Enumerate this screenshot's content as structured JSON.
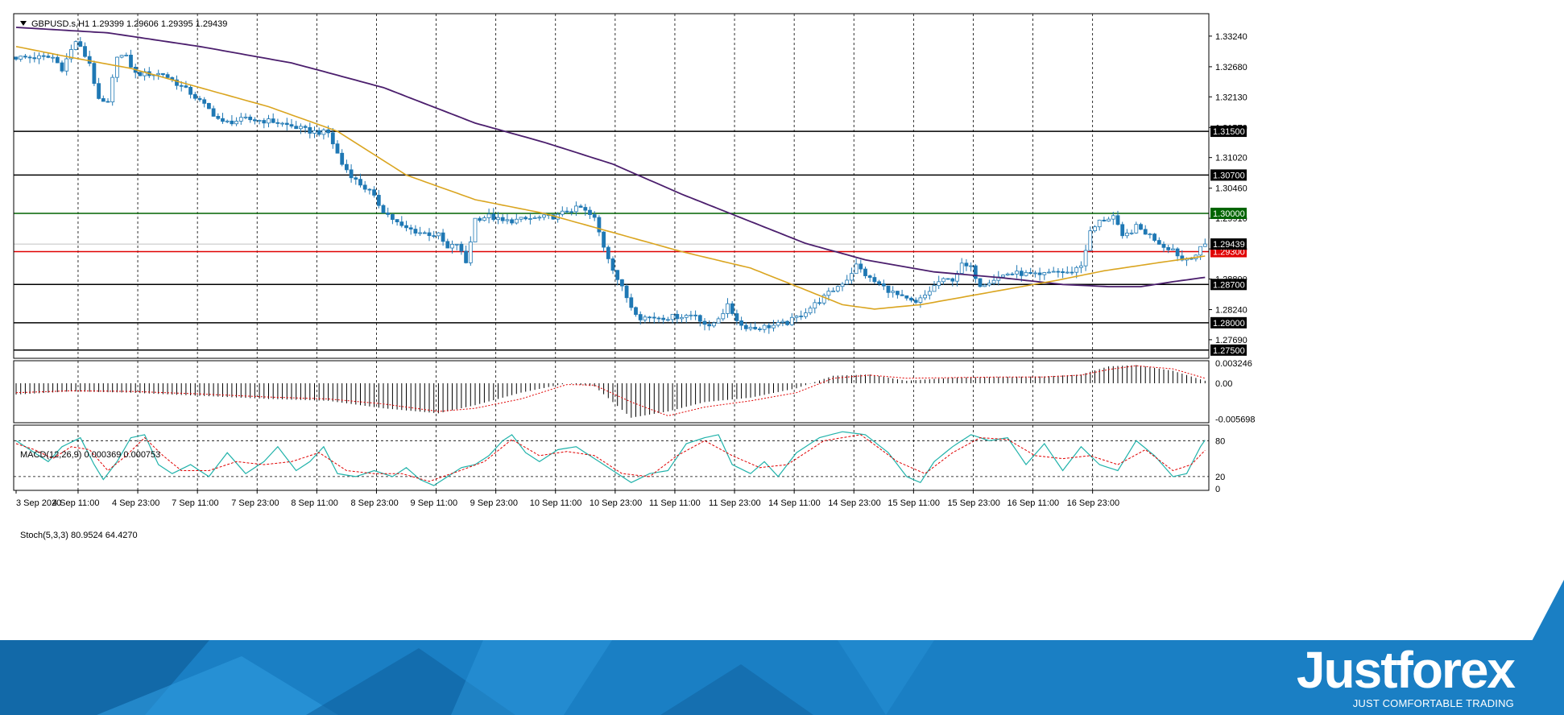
{
  "chart_data": {
    "type": "candlestick",
    "main": {
      "header": "GBPUSD.s,H1  1.29399 1.29606 1.29395 1.29439",
      "ylim": [
        1.2735,
        1.3365
      ],
      "price_ticks": [
        "1.33240",
        "1.32680",
        "1.32130",
        "1.31570",
        "1.31020",
        "1.30460",
        "1.29910",
        "1.29350",
        "1.28800",
        "1.28240",
        "1.27690"
      ],
      "x_labels": [
        "3 Sep 2020",
        "4 Sep 11:00",
        "4 Sep 23:00",
        "7 Sep 11:00",
        "7 Sep 23:00",
        "8 Sep 11:00",
        "8 Sep 23:00",
        "9 Sep 11:00",
        "9 Sep 23:00",
        "10 Sep 11:00",
        "10 Sep 23:00",
        "11 Sep 11:00",
        "11 Sep 23:00",
        "14 Sep 11:00",
        "14 Sep 23:00",
        "15 Sep 11:00",
        "15 Sep 23:00",
        "16 Sep 11:00",
        "16 Sep 23:00"
      ],
      "close_keypoints": [
        [
          0,
          1.3285
        ],
        [
          8,
          1.3285
        ],
        [
          10,
          1.3265
        ],
        [
          13,
          1.3315
        ],
        [
          16,
          1.3275
        ],
        [
          18,
          1.3205
        ],
        [
          20,
          1.32
        ],
        [
          22,
          1.329
        ],
        [
          24,
          1.3285
        ],
        [
          26,
          1.3255
        ],
        [
          32,
          1.3255
        ],
        [
          38,
          1.322
        ],
        [
          42,
          1.319
        ],
        [
          45,
          1.3165
        ],
        [
          50,
          1.3172
        ],
        [
          56,
          1.3168
        ],
        [
          61,
          1.3157
        ],
        [
          64,
          1.315
        ],
        [
          68,
          1.3147
        ],
        [
          71,
          1.309
        ],
        [
          74,
          1.306
        ],
        [
          77,
          1.304
        ],
        [
          80,
          1.3005
        ],
        [
          84,
          1.2975
        ],
        [
          88,
          1.2965
        ],
        [
          92,
          1.296
        ],
        [
          94,
          1.2935
        ],
        [
          96,
          1.2945
        ],
        [
          98,
          1.291
        ],
        [
          100,
          1.299
        ],
        [
          103,
          1.2995
        ],
        [
          106,
          1.2985
        ],
        [
          112,
          1.299
        ],
        [
          118,
          1.2995
        ],
        [
          120,
          1.3005
        ],
        [
          123,
          1.301
        ],
        [
          126,
          1.299
        ],
        [
          128,
          1.294
        ],
        [
          131,
          1.288
        ],
        [
          134,
          1.283
        ],
        [
          136,
          1.281
        ],
        [
          142,
          1.281
        ],
        [
          148,
          1.2815
        ],
        [
          151,
          1.279
        ],
        [
          155,
          1.283
        ],
        [
          158,
          1.2795
        ],
        [
          161,
          1.279
        ],
        [
          165,
          1.2795
        ],
        [
          168,
          1.28
        ],
        [
          171,
          1.2815
        ],
        [
          175,
          1.284
        ],
        [
          178,
          1.286
        ],
        [
          181,
          1.288
        ],
        [
          183,
          1.2905
        ],
        [
          186,
          1.288
        ],
        [
          189,
          1.2865
        ],
        [
          193,
          1.2845
        ],
        [
          196,
          1.2835
        ],
        [
          198,
          1.285
        ],
        [
          201,
          1.2875
        ],
        [
          204,
          1.288
        ],
        [
          206,
          1.2905
        ],
        [
          208,
          1.29
        ],
        [
          210,
          1.287
        ],
        [
          213,
          1.288
        ],
        [
          216,
          1.289
        ],
        [
          219,
          1.289
        ],
        [
          223,
          1.2885
        ],
        [
          226,
          1.2895
        ],
        [
          229,
          1.289
        ],
        [
          232,
          1.2905
        ],
        [
          234,
          1.2965
        ],
        [
          236,
          1.2985
        ],
        [
          239,
          1.2995
        ],
        [
          241,
          1.2955
        ],
        [
          244,
          1.2975
        ],
        [
          247,
          1.296
        ],
        [
          250,
          1.294
        ],
        [
          252,
          1.2935
        ],
        [
          254,
          1.2915
        ],
        [
          257,
          1.2925
        ],
        [
          259,
          1.2944
        ]
      ],
      "sma_fast_keypoints": [
        [
          0,
          1.3305
        ],
        [
          12,
          1.3285
        ],
        [
          25,
          1.3265
        ],
        [
          40,
          1.323
        ],
        [
          55,
          1.3195
        ],
        [
          70,
          1.315
        ],
        [
          85,
          1.307
        ],
        [
          100,
          1.3025
        ],
        [
          115,
          1.3
        ],
        [
          130,
          1.2965
        ],
        [
          145,
          1.293
        ],
        [
          160,
          1.29
        ],
        [
          172,
          1.286
        ],
        [
          180,
          1.2833
        ],
        [
          187,
          1.2825
        ],
        [
          197,
          1.2833
        ],
        [
          207,
          1.2848
        ],
        [
          217,
          1.2863
        ],
        [
          227,
          1.2878
        ],
        [
          237,
          1.2895
        ],
        [
          249,
          1.291
        ],
        [
          259,
          1.2922
        ]
      ],
      "sma_slow_keypoints": [
        [
          0,
          1.334
        ],
        [
          20,
          1.333
        ],
        [
          40,
          1.3305
        ],
        [
          60,
          1.3275
        ],
        [
          80,
          1.323
        ],
        [
          100,
          1.3165
        ],
        [
          115,
          1.313
        ],
        [
          130,
          1.309
        ],
        [
          145,
          1.3035
        ],
        [
          160,
          1.2985
        ],
        [
          172,
          1.2945
        ],
        [
          185,
          1.2915
        ],
        [
          200,
          1.2893
        ],
        [
          215,
          1.2882
        ],
        [
          228,
          1.287
        ],
        [
          238,
          1.2866
        ],
        [
          245,
          1.2866
        ],
        [
          252,
          1.2875
        ],
        [
          259,
          1.2883
        ]
      ],
      "levels": [
        {
          "price": 1.315,
          "label": "1.31500",
          "color": "#000000",
          "text_color": "#ffffff"
        },
        {
          "price": 1.307,
          "label": "1.30700",
          "color": "#000000",
          "text_color": "#ffffff"
        },
        {
          "price": 1.3,
          "label": "1.30000",
          "color": "#006400",
          "text_color": "#ffffff"
        },
        {
          "price": 1.293,
          "label": "1.29300",
          "color": "#e00000",
          "text_color": "#ffffff"
        },
        {
          "price": 1.287,
          "label": "1.28700",
          "color": "#000000",
          "text_color": "#ffffff"
        },
        {
          "price": 1.28,
          "label": "1.28000",
          "color": "#000000",
          "text_color": "#ffffff"
        },
        {
          "price": 1.275,
          "label": "1.27500",
          "color": "#000000",
          "text_color": "#ffffff"
        }
      ],
      "current_price": {
        "price": 1.29439,
        "label": "1.29439"
      }
    },
    "macd": {
      "header": "MACD(12,26,9) 0.000369 0.000753",
      "ticks": [
        "0.003246",
        "0.00",
        "-0.005698"
      ],
      "ylim": [
        -0.0063,
        0.0036
      ],
      "hist_keypoints": [
        [
          0,
          -0.0018
        ],
        [
          12,
          -0.0013
        ],
        [
          25,
          -0.0015
        ],
        [
          40,
          -0.002
        ],
        [
          55,
          -0.0025
        ],
        [
          68,
          -0.0028
        ],
        [
          80,
          -0.004
        ],
        [
          92,
          -0.0048
        ],
        [
          100,
          -0.0035
        ],
        [
          110,
          -0.0015
        ],
        [
          120,
          0.0
        ],
        [
          126,
          -0.0005
        ],
        [
          134,
          -0.0055
        ],
        [
          142,
          -0.0045
        ],
        [
          150,
          -0.003
        ],
        [
          160,
          -0.0023
        ],
        [
          170,
          -0.0008
        ],
        [
          178,
          0.0012
        ],
        [
          186,
          0.0014
        ],
        [
          194,
          0.0004
        ],
        [
          204,
          0.0009
        ],
        [
          214,
          0.001
        ],
        [
          224,
          0.0011
        ],
        [
          232,
          0.0014
        ],
        [
          238,
          0.0027
        ],
        [
          244,
          0.0029
        ],
        [
          252,
          0.002
        ],
        [
          259,
          0.0004
        ]
      ],
      "signal_keypoints": [
        [
          0,
          -0.0015
        ],
        [
          12,
          -0.0012
        ],
        [
          25,
          -0.0013
        ],
        [
          40,
          -0.0017
        ],
        [
          55,
          -0.0022
        ],
        [
          68,
          -0.0025
        ],
        [
          80,
          -0.0033
        ],
        [
          92,
          -0.0045
        ],
        [
          100,
          -0.004
        ],
        [
          110,
          -0.0025
        ],
        [
          120,
          -0.0002
        ],
        [
          126,
          -0.0003
        ],
        [
          134,
          -0.003
        ],
        [
          142,
          -0.0052
        ],
        [
          150,
          -0.0038
        ],
        [
          160,
          -0.0028
        ],
        [
          170,
          -0.0015
        ],
        [
          178,
          0.0008
        ],
        [
          186,
          0.0013
        ],
        [
          194,
          0.0008
        ],
        [
          204,
          0.0009
        ],
        [
          214,
          0.001
        ],
        [
          224,
          0.001
        ],
        [
          232,
          0.0013
        ],
        [
          238,
          0.0022
        ],
        [
          244,
          0.0028
        ],
        [
          252,
          0.0023
        ],
        [
          259,
          0.0008
        ]
      ]
    },
    "stoch": {
      "header": "Stoch(5,3,3) 80.9524 64.4270",
      "ticks": [
        "80",
        "20",
        "0"
      ],
      "ylim": [
        -3,
        106
      ],
      "main_keypoints": [
        [
          0,
          80
        ],
        [
          4,
          60
        ],
        [
          7,
          45
        ],
        [
          10,
          70
        ],
        [
          14,
          85
        ],
        [
          17,
          40
        ],
        [
          19,
          15
        ],
        [
          22,
          45
        ],
        [
          25,
          85
        ],
        [
          28,
          90
        ],
        [
          31,
          40
        ],
        [
          34,
          25
        ],
        [
          38,
          40
        ],
        [
          42,
          20
        ],
        [
          46,
          60
        ],
        [
          50,
          25
        ],
        [
          54,
          45
        ],
        [
          57,
          70
        ],
        [
          61,
          30
        ],
        [
          64,
          45
        ],
        [
          67,
          70
        ],
        [
          70,
          25
        ],
        [
          74,
          20
        ],
        [
          78,
          30
        ],
        [
          82,
          20
        ],
        [
          85,
          35
        ],
        [
          88,
          15
        ],
        [
          91,
          5
        ],
        [
          94,
          20
        ],
        [
          97,
          35
        ],
        [
          100,
          40
        ],
        [
          103,
          55
        ],
        [
          106,
          80
        ],
        [
          108,
          90
        ],
        [
          111,
          60
        ],
        [
          114,
          45
        ],
        [
          118,
          65
        ],
        [
          122,
          70
        ],
        [
          126,
          50
        ],
        [
          130,
          30
        ],
        [
          134,
          10
        ],
        [
          138,
          25
        ],
        [
          142,
          30
        ],
        [
          146,
          75
        ],
        [
          150,
          85
        ],
        [
          153,
          90
        ],
        [
          156,
          40
        ],
        [
          160,
          25
        ],
        [
          163,
          45
        ],
        [
          166,
          20
        ],
        [
          170,
          60
        ],
        [
          175,
          85
        ],
        [
          180,
          95
        ],
        [
          185,
          90
        ],
        [
          190,
          60
        ],
        [
          194,
          20
        ],
        [
          197,
          10
        ],
        [
          200,
          45
        ],
        [
          204,
          70
        ],
        [
          208,
          90
        ],
        [
          212,
          80
        ],
        [
          216,
          85
        ],
        [
          220,
          40
        ],
        [
          224,
          75
        ],
        [
          228,
          30
        ],
        [
          232,
          70
        ],
        [
          236,
          40
        ],
        [
          240,
          30
        ],
        [
          244,
          80
        ],
        [
          248,
          55
        ],
        [
          252,
          20
        ],
        [
          255,
          25
        ],
        [
          258,
          70
        ],
        [
          259,
          81
        ]
      ],
      "signal_keypoints": [
        [
          0,
          75
        ],
        [
          4,
          65
        ],
        [
          8,
          50
        ],
        [
          12,
          70
        ],
        [
          16,
          65
        ],
        [
          20,
          30
        ],
        [
          24,
          55
        ],
        [
          28,
          85
        ],
        [
          32,
          55
        ],
        [
          36,
          30
        ],
        [
          42,
          30
        ],
        [
          48,
          45
        ],
        [
          54,
          40
        ],
        [
          60,
          45
        ],
        [
          66,
          60
        ],
        [
          72,
          30
        ],
        [
          78,
          25
        ],
        [
          84,
          25
        ],
        [
          90,
          12
        ],
        [
          96,
          28
        ],
        [
          102,
          45
        ],
        [
          108,
          82
        ],
        [
          114,
          55
        ],
        [
          120,
          62
        ],
        [
          126,
          55
        ],
        [
          132,
          25
        ],
        [
          138,
          20
        ],
        [
          144,
          55
        ],
        [
          150,
          80
        ],
        [
          156,
          55
        ],
        [
          162,
          35
        ],
        [
          168,
          40
        ],
        [
          176,
          80
        ],
        [
          184,
          90
        ],
        [
          192,
          45
        ],
        [
          198,
          25
        ],
        [
          204,
          60
        ],
        [
          210,
          85
        ],
        [
          216,
          82
        ],
        [
          222,
          55
        ],
        [
          228,
          50
        ],
        [
          234,
          55
        ],
        [
          240,
          40
        ],
        [
          246,
          65
        ],
        [
          252,
          30
        ],
        [
          256,
          40
        ],
        [
          259,
          64
        ]
      ]
    }
  },
  "branding": {
    "logo": "Justforex",
    "tagline": "JUST COMFORTABLE TRADING",
    "colors": {
      "band": "#1a7fc4",
      "band_dark": "#0f5f9c",
      "accent": "#2f9be0"
    }
  },
  "colors": {
    "bull_body": "#ffffff",
    "bear_body": "#1f78b4",
    "candle_outline": "#1f78b4",
    "sma_fast": "#daa520",
    "sma_slow": "#4b1e6d",
    "stoch_main": "#20b2aa",
    "stoch_signal": "#e00000",
    "macd_signal": "#e00000",
    "macd_hist": "#000000",
    "grid": "#000000",
    "current_price_line": "#c0c0c0",
    "current_price_box": "#000000"
  }
}
